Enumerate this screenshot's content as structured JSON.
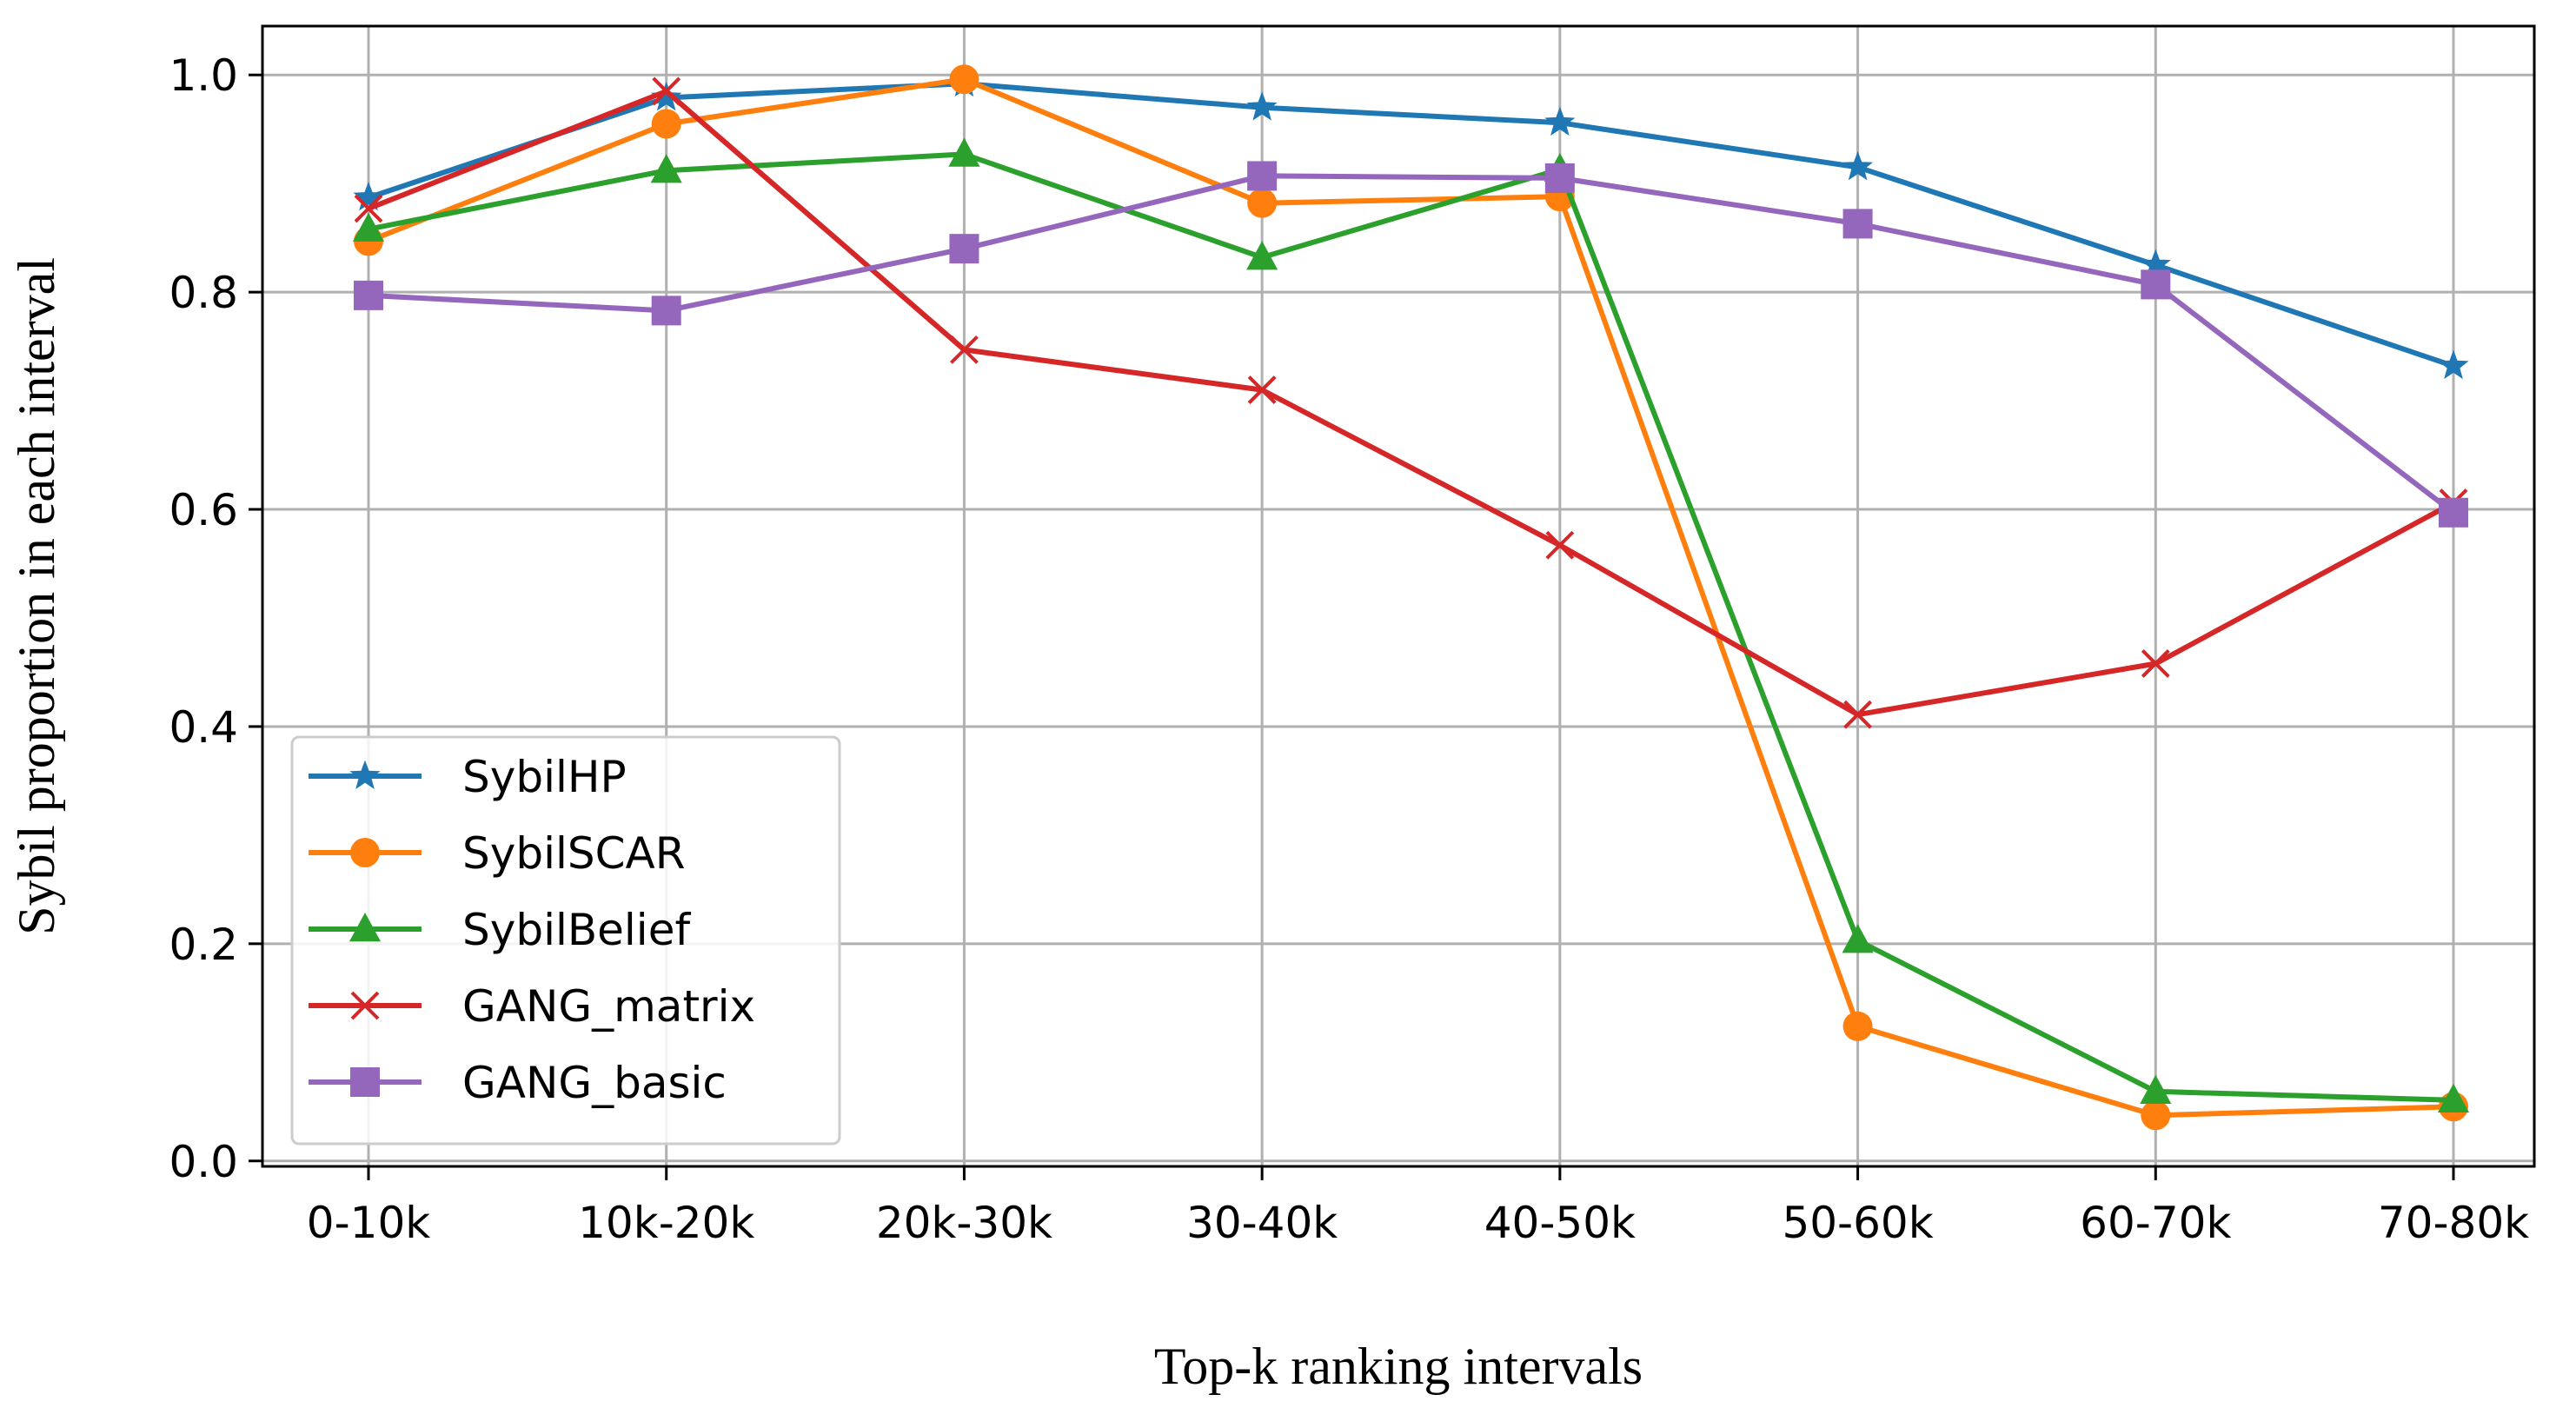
{
  "chart_data": {
    "type": "line",
    "title": "",
    "xlabel": "Top-k ranking intervals",
    "ylabel": "Sybil proportion in each interval",
    "categories": [
      "0-10k",
      "10k-20k",
      "20k-30k",
      "30-40k",
      "40-50k",
      "50-60k",
      "60-70k",
      "70-80k"
    ],
    "ylim": [
      -0.005,
      1.045
    ],
    "yticks": [
      "0.0",
      "0.2",
      "0.4",
      "0.6",
      "0.8",
      "1.0"
    ],
    "grid": true,
    "legend_position": "lower-left",
    "series": [
      {
        "name": "SybilHP",
        "color": "#1f77b4",
        "marker": "star",
        "values": [
          0.887,
          0.979,
          0.992,
          0.97,
          0.956,
          0.915,
          0.825,
          0.732
        ]
      },
      {
        "name": "SybilSCAR",
        "color": "#ff7f0e",
        "marker": "circle",
        "values": [
          0.847,
          0.955,
          0.996,
          0.882,
          0.888,
          0.124,
          0.042,
          0.05
        ]
      },
      {
        "name": "SybilBelief",
        "color": "#2ca02c",
        "marker": "triangle",
        "values": [
          0.858,
          0.912,
          0.927,
          0.832,
          0.913,
          0.203,
          0.064,
          0.056
        ]
      },
      {
        "name": "GANG_matrix",
        "color": "#d62728",
        "marker": "x",
        "values": [
          0.877,
          0.985,
          0.747,
          0.71,
          0.567,
          0.411,
          0.458,
          0.606
        ]
      },
      {
        "name": "GANG_basic",
        "color": "#9467bd",
        "marker": "square",
        "values": [
          0.797,
          0.783,
          0.84,
          0.907,
          0.905,
          0.863,
          0.807,
          0.597
        ]
      }
    ]
  }
}
